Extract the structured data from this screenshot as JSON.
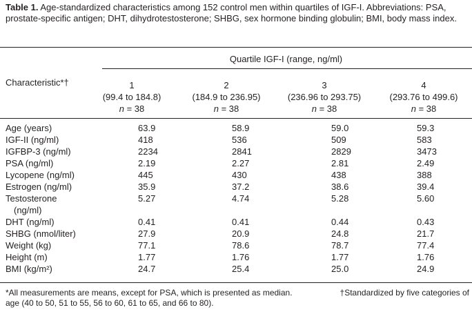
{
  "caption": {
    "label": "Table 1.",
    "text": "Age-standardized characteristics among 152 control men within quartiles of IGF-I. Abbreviations: PSA, prostate-specific antigen; DHT, dihydrotestosterone; SHBG, sex hormone binding globulin; BMI, body mass index."
  },
  "header": {
    "spanner": "Quartile IGF-I (range, ng/ml)",
    "characteristic": "Characteristic*†",
    "columns": [
      {
        "num": "1",
        "range": "(99.4 to 184.8)",
        "n_label": "n",
        "n_value": " = 38"
      },
      {
        "num": "2",
        "range": "(184.9 to 236.95)",
        "n_label": "n",
        "n_value": " = 38"
      },
      {
        "num": "3",
        "range": "(236.96 to 293.75)",
        "n_label": "n",
        "n_value": " = 38"
      },
      {
        "num": "4",
        "range": "(293.76 to 499.6)",
        "n_label": "n",
        "n_value": " = 38"
      }
    ]
  },
  "rows": [
    {
      "label": "Age (years)",
      "values": [
        "63.9",
        "58.9",
        "59.0",
        "59.3"
      ]
    },
    {
      "label": "IGF-II (ng/ml)",
      "values": [
        "418",
        "536",
        "509",
        "583"
      ]
    },
    {
      "label": "IGFBP-3 (ng/ml)",
      "values": [
        "2234",
        "2841",
        "2829",
        "3473"
      ]
    },
    {
      "label": "PSA (ng/ml)",
      "values": [
        "2.19",
        "2.27",
        "2.81",
        "2.49"
      ]
    },
    {
      "label": "Lycopene (ng/ml)",
      "values": [
        "445",
        "430",
        "438",
        "388"
      ]
    },
    {
      "label": "Estrogen (ng/ml)",
      "values": [
        "35.9",
        "37.2",
        "38.6",
        "39.4"
      ]
    },
    {
      "label": "Testosterone",
      "label2": "(ng/ml)",
      "values": [
        "5.27",
        "4.74",
        "5.28",
        "5.60"
      ]
    },
    {
      "label": "DHT (ng/ml)",
      "values": [
        "0.41",
        "0.41",
        "0.44",
        "0.43"
      ]
    },
    {
      "label": "SHBG (nmol/liter)",
      "values": [
        "27.9",
        "20.9",
        "24.8",
        "21.7"
      ]
    },
    {
      "label": "Weight (kg)",
      "values": [
        "77.1",
        "78.6",
        "78.7",
        "77.4"
      ]
    },
    {
      "label": "Height (m)",
      "values": [
        "1.77",
        "1.76",
        "1.77",
        "1.76"
      ]
    },
    {
      "label": "BMI (kg/m²)",
      "values": [
        "24.7",
        "25.4",
        "25.0",
        "24.9"
      ]
    }
  ],
  "footnotes": {
    "star": "*All measurements are means, except for PSA, which is presented as median.",
    "dagger_start": "†Standardized by five categories of",
    "dagger_cont": "age (40 to 50, 51 to 55, 56 to 60, 61 to 65, and 66 to 80)."
  }
}
